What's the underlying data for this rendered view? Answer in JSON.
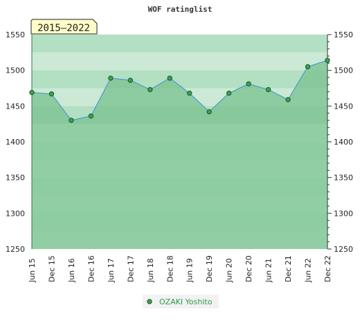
{
  "chart_data": {
    "type": "area",
    "title": "WOF ratinglist",
    "period_badge": "2015–2022",
    "categories": [
      "Jun 15",
      "Dec 15",
      "Jun 16",
      "Dec 16",
      "Jun 17",
      "Dec 17",
      "Jun 18",
      "Dec 18",
      "Jun 19",
      "Dec 19",
      "Jun 20",
      "Dec 20",
      "Jun 21",
      "Dec 21",
      "Jun 22",
      "Dec 22"
    ],
    "series": [
      {
        "name": "OZAKI Yoshito",
        "values": [
          1469,
          1467,
          1430,
          1436,
          1489,
          1486,
          1473,
          1489,
          1468,
          1442,
          1468,
          1481,
          1473,
          1459,
          1505,
          1514
        ]
      }
    ],
    "ylim": [
      1250,
      1550
    ],
    "yticks": [
      1250,
      1300,
      1350,
      1400,
      1450,
      1500,
      1550
    ],
    "xlabel": "",
    "ylabel": "",
    "legend_position": "bottom",
    "grid": true,
    "colors": {
      "line": "#4a9ad0",
      "area": "#7fc494",
      "marker": "#3aa050",
      "legend_text": "#2e9a4a"
    }
  }
}
